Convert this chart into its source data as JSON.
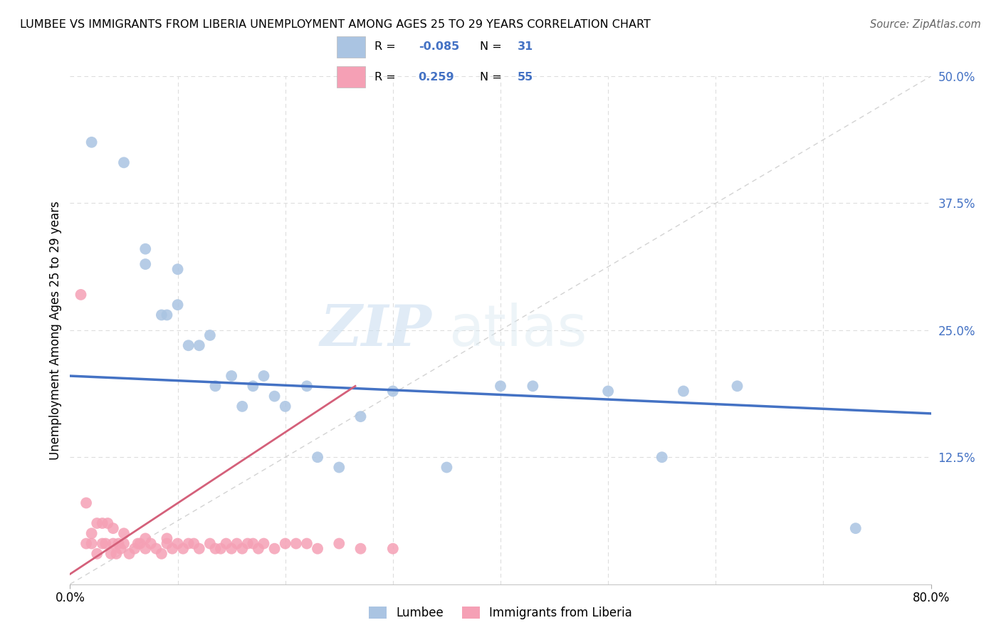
{
  "title": "LUMBEE VS IMMIGRANTS FROM LIBERIA UNEMPLOYMENT AMONG AGES 25 TO 29 YEARS CORRELATION CHART",
  "source": "Source: ZipAtlas.com",
  "ylabel": "Unemployment Among Ages 25 to 29 years",
  "xlim": [
    0,
    0.8
  ],
  "ylim": [
    0,
    0.5
  ],
  "yticks": [
    0.0,
    0.125,
    0.25,
    0.375,
    0.5
  ],
  "yticklabels": [
    "",
    "12.5%",
    "25.0%",
    "37.5%",
    "50.0%"
  ],
  "lumbee_color": "#aac4e2",
  "liberia_color": "#f5a0b5",
  "lumbee_line_color": "#4472c4",
  "liberia_line_color": "#d4607a",
  "ref_line_color": "#c8c8c8",
  "watermark_zip": "ZIP",
  "watermark_atlas": "atlas",
  "lumbee_x": [
    0.02,
    0.05,
    0.07,
    0.07,
    0.085,
    0.09,
    0.1,
    0.1,
    0.11,
    0.12,
    0.13,
    0.135,
    0.15,
    0.16,
    0.17,
    0.18,
    0.19,
    0.2,
    0.22,
    0.23,
    0.25,
    0.27,
    0.3,
    0.35,
    0.4,
    0.43,
    0.5,
    0.55,
    0.57,
    0.62,
    0.73
  ],
  "lumbee_y": [
    0.435,
    0.415,
    0.33,
    0.315,
    0.265,
    0.265,
    0.31,
    0.275,
    0.235,
    0.235,
    0.245,
    0.195,
    0.205,
    0.175,
    0.195,
    0.205,
    0.185,
    0.175,
    0.195,
    0.125,
    0.115,
    0.165,
    0.19,
    0.115,
    0.195,
    0.195,
    0.19,
    0.125,
    0.19,
    0.195,
    0.055
  ],
  "liberia_x": [
    0.01,
    0.015,
    0.015,
    0.02,
    0.02,
    0.025,
    0.025,
    0.03,
    0.03,
    0.033,
    0.035,
    0.038,
    0.04,
    0.04,
    0.043,
    0.045,
    0.047,
    0.05,
    0.05,
    0.055,
    0.06,
    0.063,
    0.065,
    0.07,
    0.07,
    0.075,
    0.08,
    0.085,
    0.09,
    0.09,
    0.095,
    0.1,
    0.105,
    0.11,
    0.115,
    0.12,
    0.13,
    0.135,
    0.14,
    0.145,
    0.15,
    0.155,
    0.16,
    0.165,
    0.17,
    0.175,
    0.18,
    0.19,
    0.2,
    0.21,
    0.22,
    0.23,
    0.25,
    0.27,
    0.3
  ],
  "liberia_y": [
    0.285,
    0.04,
    0.08,
    0.04,
    0.05,
    0.03,
    0.06,
    0.04,
    0.06,
    0.04,
    0.06,
    0.03,
    0.04,
    0.055,
    0.03,
    0.04,
    0.035,
    0.04,
    0.05,
    0.03,
    0.035,
    0.04,
    0.04,
    0.035,
    0.045,
    0.04,
    0.035,
    0.03,
    0.04,
    0.045,
    0.035,
    0.04,
    0.035,
    0.04,
    0.04,
    0.035,
    0.04,
    0.035,
    0.035,
    0.04,
    0.035,
    0.04,
    0.035,
    0.04,
    0.04,
    0.035,
    0.04,
    0.035,
    0.04,
    0.04,
    0.04,
    0.035,
    0.04,
    0.035,
    0.035
  ],
  "blue_line_x0": 0.0,
  "blue_line_x1": 0.8,
  "blue_line_y0": 0.205,
  "blue_line_y1": 0.168,
  "pink_line_x0": 0.0,
  "pink_line_x1": 0.265,
  "pink_line_y0": 0.01,
  "pink_line_y1": 0.195
}
